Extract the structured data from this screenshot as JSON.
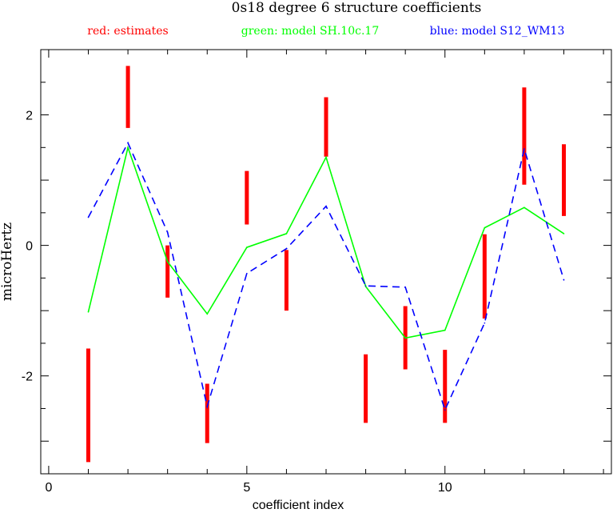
{
  "chart_data": {
    "type": "line",
    "title": "0s18 degree 6 structure coefficients",
    "legend": [
      {
        "label": "red: estimates",
        "color": "#ff0000"
      },
      {
        "label": "green: model SH.10c.17",
        "color": "#00ff00"
      },
      {
        "label": "blue: model S12_WM13",
        "color": "#0000ff"
      }
    ],
    "xlabel": "coefficient index",
    "ylabel": "microHertz",
    "xlim": [
      -0.2,
      14.2
    ],
    "ylim": [
      -3.5,
      3.0
    ],
    "x_ticks": [
      0,
      5,
      10
    ],
    "y_ticks": [
      -2,
      0,
      2
    ],
    "grid": false,
    "series": [
      {
        "name": "estimates",
        "type": "range",
        "color": "#ff0000",
        "x": [
          1,
          2,
          3,
          4,
          5,
          6,
          7,
          8,
          9,
          10,
          11,
          12,
          13
        ],
        "low": [
          -3.32,
          1.8,
          -0.8,
          -3.03,
          0.32,
          -1.0,
          1.36,
          -2.72,
          -1.9,
          -2.72,
          -1.12,
          0.93,
          0.45
        ],
        "high": [
          -1.58,
          2.75,
          0.0,
          -2.12,
          1.14,
          -0.07,
          2.27,
          -1.67,
          -0.93,
          -1.6,
          0.17,
          2.42,
          1.55
        ]
      },
      {
        "name": "model SH.10c.17",
        "type": "line",
        "color": "#00ff00",
        "x": [
          1,
          2,
          3,
          4,
          5,
          6,
          7,
          8,
          9,
          10,
          11,
          12,
          13
        ],
        "values": [
          -1.02,
          1.5,
          -0.25,
          -1.05,
          -0.03,
          0.18,
          1.35,
          -0.63,
          -1.42,
          -1.3,
          0.27,
          0.58,
          0.18
        ]
      },
      {
        "name": "model S12_WM13",
        "type": "dashed-line",
        "color": "#0000ff",
        "x": [
          1,
          2,
          3,
          4,
          5,
          6,
          7,
          8,
          9,
          10,
          11,
          12,
          13
        ],
        "values": [
          0.43,
          1.57,
          0.2,
          -2.47,
          -0.43,
          -0.05,
          0.6,
          -0.62,
          -0.64,
          -2.52,
          -1.19,
          1.48,
          -0.53
        ]
      }
    ]
  }
}
